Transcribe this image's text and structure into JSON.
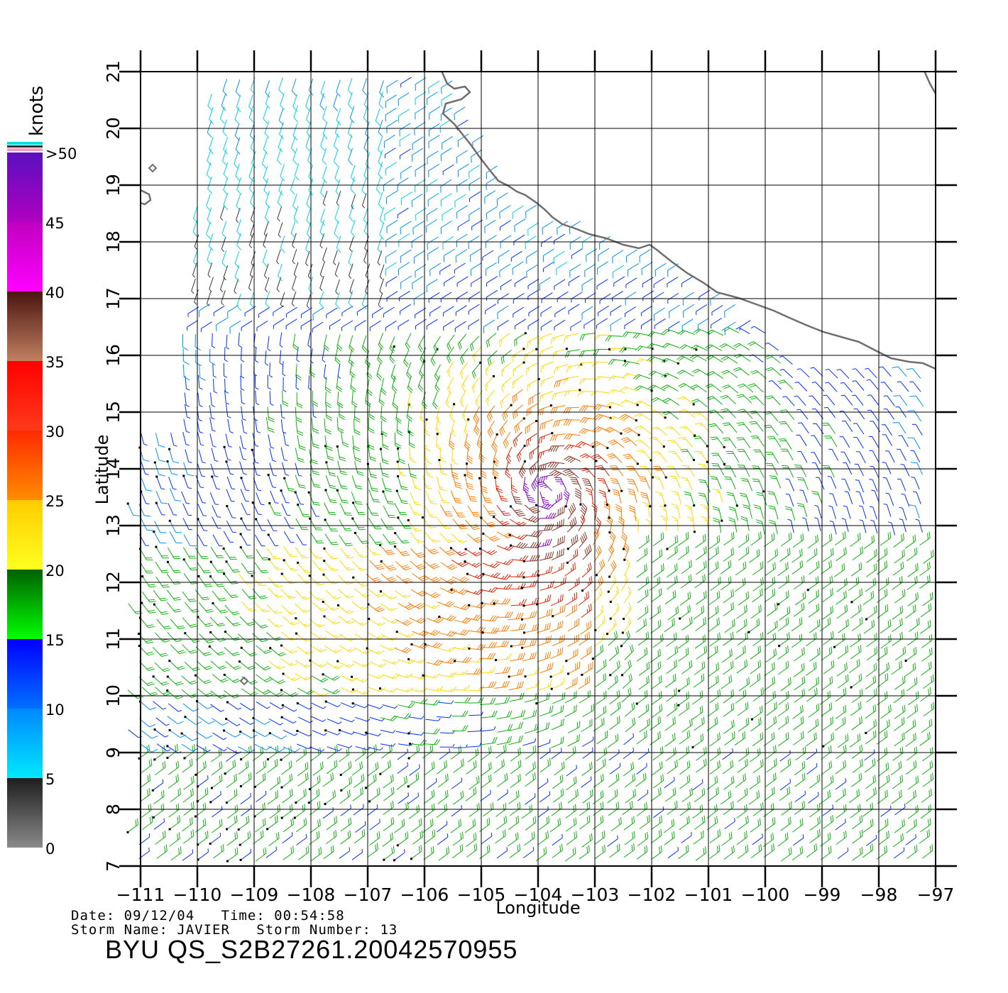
{
  "axes": {
    "lon_ticks": [
      "−111",
      "−110",
      "−109",
      "−108",
      "−107",
      "−106",
      "−105",
      "−104",
      "−103",
      "−102",
      "−101",
      "−100",
      "−99",
      "−98",
      "−97"
    ],
    "lat_ticks": [
      "7",
      "8",
      "9",
      "10",
      "11",
      "12",
      "13",
      "14",
      "15",
      "16",
      "17",
      "18",
      "19",
      "20",
      "21"
    ],
    "xlabel": "Longitude",
    "ylabel": "Latitude",
    "lon_range": [
      -111,
      -97
    ],
    "lat_range": [
      7,
      21
    ]
  },
  "colorbar": {
    "unit": "knots",
    "labels": [
      ">50",
      "45",
      "40",
      "35",
      "30",
      "25",
      "20",
      "15",
      "10",
      "5",
      "0"
    ],
    "stops": [
      {
        "from": 0,
        "to": 5,
        "top": "#1e1e1e",
        "bottom": "#8a8a8a"
      },
      {
        "from": 5,
        "to": 10,
        "top": "#0088ff",
        "bottom": "#00e8ff"
      },
      {
        "from": 10,
        "to": 15,
        "top": "#0000ff",
        "bottom": "#0070ff"
      },
      {
        "from": 15,
        "to": 20,
        "top": "#006000",
        "bottom": "#00ff00"
      },
      {
        "from": 20,
        "to": 25,
        "top": "#ffcc00",
        "bottom": "#ffff20"
      },
      {
        "from": 25,
        "to": 30,
        "top": "#ff2a00",
        "bottom": "#ff8c00"
      },
      {
        "from": 30,
        "to": 35,
        "top": "#ff0000",
        "bottom": "#ff3a1a"
      },
      {
        "from": 35,
        "to": 40,
        "top": "#4a1410",
        "bottom": "#c08060"
      },
      {
        "from": 40,
        "to": 45,
        "top": "#c000c0",
        "bottom": "#ff00ff"
      },
      {
        "from": 45,
        "to": 50,
        "top": "#5a10c0",
        "bottom": "#b000c0"
      }
    ]
  },
  "storm": {
    "date_label": "Date:",
    "date": "09/12/04",
    "time_label": "Time:",
    "time": "00:54:58",
    "name_label": "Storm Name:",
    "name": "JAVIER",
    "number_label": "Storm Number:",
    "number": "13",
    "center_lon": -103.8,
    "center_lat": 13.6
  },
  "product_id": "BYU  QS_S2B27261.20042570955",
  "colors": {
    "coastline": "#6e6e6e",
    "grid": "#000000"
  }
}
